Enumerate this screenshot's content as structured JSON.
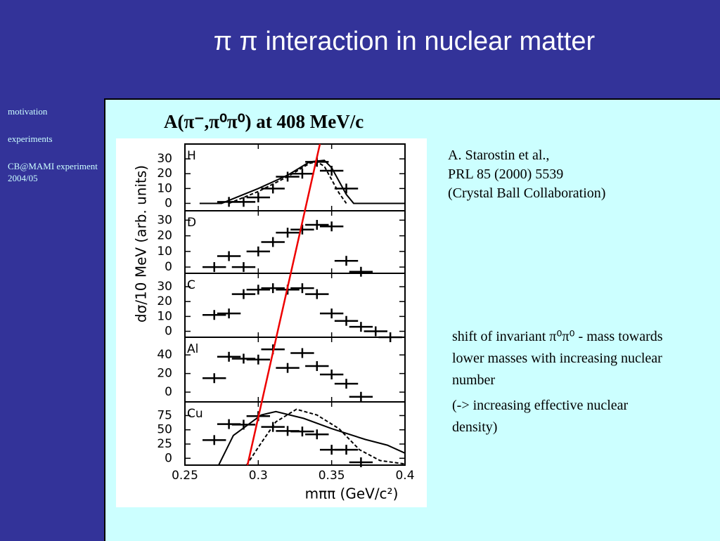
{
  "slide": {
    "title": "π π interaction in nuclear matter",
    "nav": [
      "motivation",
      "experiments",
      "CB@MAMI experiment 2004/05"
    ],
    "plot_title": "A(π⁻,π⁰π⁰) at 408 MeV/c",
    "reference": [
      "A. Starostin et al.,",
      "PRL 85 (2000) 5539",
      "(Crystal Ball Collaboration)"
    ],
    "notes": [
      "shift of invariant π⁰π⁰ - mass towards lower masses with increasing nuclear number",
      "(-> increasing effective nuclear density)"
    ]
  },
  "chart_data": [
    {
      "type": "scatter",
      "label": "H",
      "ylabel": "dσ/10 MeV (arb. units)",
      "ylim": [
        -5,
        40
      ],
      "yticks": [
        0,
        10,
        20,
        30
      ],
      "x": [
        0.28,
        0.29,
        0.3,
        0.31,
        0.32,
        0.33,
        0.34,
        0.35,
        0.36
      ],
      "values": [
        1,
        1,
        4,
        10,
        18,
        20,
        28,
        22,
        10
      ],
      "lines": [
        {
          "dashed": false,
          "x": [
            0.26,
            0.275,
            0.3,
            0.32,
            0.335,
            0.345,
            0.35,
            0.355,
            0.36,
            0.365,
            0.4
          ],
          "values": [
            0,
            0,
            10,
            19,
            28,
            29,
            24,
            15,
            6,
            0,
            0
          ]
        },
        {
          "dashed": true,
          "x": [
            0.28,
            0.3,
            0.32,
            0.335,
            0.34,
            0.345,
            0.35,
            0.355,
            0.36
          ],
          "values": [
            0,
            8,
            18,
            27,
            28,
            25,
            16,
            7,
            0
          ]
        }
      ]
    },
    {
      "type": "scatter",
      "label": "D",
      "ylim": [
        -4,
        36
      ],
      "yticks": [
        0,
        10,
        20,
        30
      ],
      "x": [
        0.27,
        0.28,
        0.29,
        0.3,
        0.31,
        0.32,
        0.33,
        0.34,
        0.35,
        0.36,
        0.37
      ],
      "values": [
        0,
        7,
        0,
        10,
        16,
        22,
        24,
        27,
        26,
        4,
        -3
      ]
    },
    {
      "type": "scatter",
      "label": "C",
      "ylim": [
        -4,
        39
      ],
      "yticks": [
        0,
        10,
        20,
        30
      ],
      "x": [
        0.27,
        0.28,
        0.29,
        0.3,
        0.31,
        0.32,
        0.33,
        0.34,
        0.35,
        0.36,
        0.37,
        0.38,
        0.39
      ],
      "values": [
        11,
        12,
        25,
        28,
        29,
        28,
        29,
        25,
        12,
        7,
        3,
        0,
        -4
      ]
    },
    {
      "type": "scatter",
      "label": "Al",
      "ylim": [
        -10.5,
        59
      ],
      "yticks": [
        0,
        20,
        40
      ],
      "x": [
        0.27,
        0.28,
        0.29,
        0.3,
        0.31,
        0.32,
        0.33,
        0.34,
        0.35,
        0.36,
        0.37
      ],
      "values": [
        15,
        38,
        36,
        35,
        46,
        26,
        42,
        28,
        19,
        9,
        -5
      ]
    },
    {
      "type": "scatter",
      "label": "Cu",
      "ylim": [
        -12,
        99
      ],
      "yticks": [
        0,
        25,
        50,
        75
      ],
      "xlim": [
        0.25,
        0.4
      ],
      "xticks": [
        0.25,
        0.3,
        0.35,
        0.4
      ],
      "xlabel": "mππ (GeV/c²)",
      "x": [
        0.27,
        0.28,
        0.29,
        0.3,
        0.31,
        0.32,
        0.33,
        0.34,
        0.35,
        0.36,
        0.37
      ],
      "values": [
        32,
        60,
        59,
        74,
        55,
        48,
        47,
        42,
        15,
        15,
        -7
      ],
      "lines": [
        {
          "dashed": false,
          "x": [
            0.273,
            0.283,
            0.302,
            0.312,
            0.331,
            0.35,
            0.373,
            0.388,
            0.4
          ],
          "values": [
            -12,
            40,
            76,
            82,
            70,
            52,
            33,
            23,
            9
          ]
        },
        {
          "dashed": true,
          "x": [
            0.292,
            0.302,
            0.312,
            0.326,
            0.34,
            0.355,
            0.369,
            0.383,
            0.4
          ],
          "values": [
            -12,
            27,
            64,
            86,
            76,
            52,
            15,
            -4,
            -10
          ]
        }
      ]
    }
  ]
}
